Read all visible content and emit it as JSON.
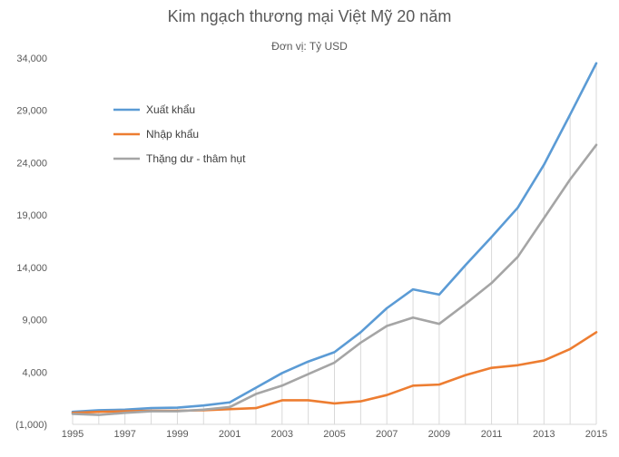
{
  "chart_data": {
    "type": "line",
    "title": "Kim ngạch thương mại Việt Mỹ 20 năm",
    "subtitle": "Đơn vị: Tỷ USD",
    "xlabel": "",
    "ylabel": "",
    "x": [
      1995,
      1996,
      1997,
      1998,
      1999,
      2000,
      2001,
      2002,
      2003,
      2004,
      2005,
      2006,
      2007,
      2008,
      2009,
      2010,
      2011,
      2012,
      2013,
      2014,
      2015
    ],
    "x_tick_labels": [
      "1995",
      "1997",
      "1999",
      "2001",
      "2003",
      "2005",
      "2007",
      "2009",
      "2011",
      "2013",
      "2015"
    ],
    "y_tick_labels": [
      "(1,000)",
      "4,000",
      "9,000",
      "14,000",
      "19,000",
      "24,000",
      "29,000",
      "34,000"
    ],
    "ylim": [
      -1000,
      34000
    ],
    "y_ticks": [
      -1000,
      4000,
      9000,
      14000,
      19000,
      24000,
      29000,
      34000
    ],
    "grid": "vertical lines from points",
    "legend_position": "top-left",
    "series": [
      {
        "name": "Xuất khẩu",
        "color": "#5B9BD5",
        "values": [
          200,
          350,
          400,
          550,
          600,
          800,
          1100,
          2500,
          3900,
          5000,
          5900,
          7800,
          10100,
          11900,
          11400,
          14200,
          16900,
          19700,
          23800,
          28600,
          33500
        ]
      },
      {
        "name": "Nhập khẩu",
        "color": "#ED7D31",
        "values": [
          100,
          200,
          250,
          300,
          300,
          350,
          450,
          550,
          1300,
          1300,
          1000,
          1200,
          1800,
          2700,
          2800,
          3700,
          4400,
          4650,
          5100,
          6200,
          7800
        ]
      },
      {
        "name": "Thặng dư - thâm hụt",
        "color": "#A5A5A5",
        "values": [
          0,
          -100,
          100,
          250,
          250,
          400,
          650,
          1900,
          2700,
          3800,
          4900,
          6800,
          8400,
          9200,
          8600,
          10500,
          12500,
          15000,
          18700,
          22400,
          25700
        ]
      }
    ]
  }
}
